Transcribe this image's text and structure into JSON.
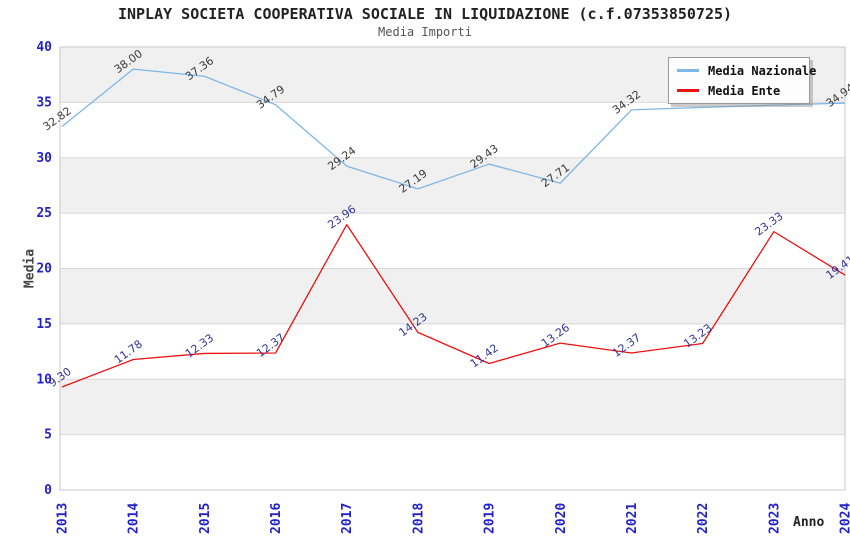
{
  "chart_data": {
    "type": "line",
    "title": "INPLAY SOCIETA COOPERATIVA SOCIALE IN LIQUIDAZIONE (c.f.07353850725)",
    "subtitle": "Media Importi",
    "xlabel": "Anno",
    "ylabel": "Media",
    "ylim": [
      0,
      40
    ],
    "ytick_step": 5,
    "yticks": [
      0,
      5,
      10,
      15,
      20,
      25,
      30,
      35,
      40
    ],
    "categories": [
      "2013",
      "2014",
      "2015",
      "2016",
      "2017",
      "2018",
      "2019",
      "2020",
      "2021",
      "2022",
      "2023",
      "2024"
    ],
    "series": [
      {
        "name": "Media Nazionale",
        "color": "#7EB6E8",
        "label_color": "#3A3A3A",
        "values": [
          32.82,
          38.0,
          37.36,
          34.79,
          29.24,
          27.19,
          29.43,
          27.71,
          34.32,
          34.55,
          34.75,
          34.94
        ],
        "labels": [
          "32.82",
          "38.00",
          "37.36",
          "34.79",
          "29.24",
          "27.19",
          "29.43",
          "27.71",
          "34.32",
          null,
          null,
          "34.94"
        ]
      },
      {
        "name": "Media Ente",
        "color": "#EE1111",
        "label_color": "#333399",
        "values": [
          9.3,
          11.78,
          12.33,
          12.37,
          23.96,
          14.23,
          11.42,
          13.26,
          12.37,
          13.23,
          23.33,
          19.41
        ],
        "labels": [
          "9.30",
          "11.78",
          "12.33",
          "12.37",
          "23.96",
          "14.23",
          "11.42",
          "13.26",
          "12.37",
          "13.23",
          "23.33",
          "19.41"
        ]
      }
    ],
    "legend_position": "top-right",
    "grid": true,
    "band_color": "#F0F0F0",
    "grid_color": "#D8D8D8",
    "border_color": "#C8C8C8",
    "tick_color": "#2222CC",
    "axis_title_color": "#444444"
  }
}
